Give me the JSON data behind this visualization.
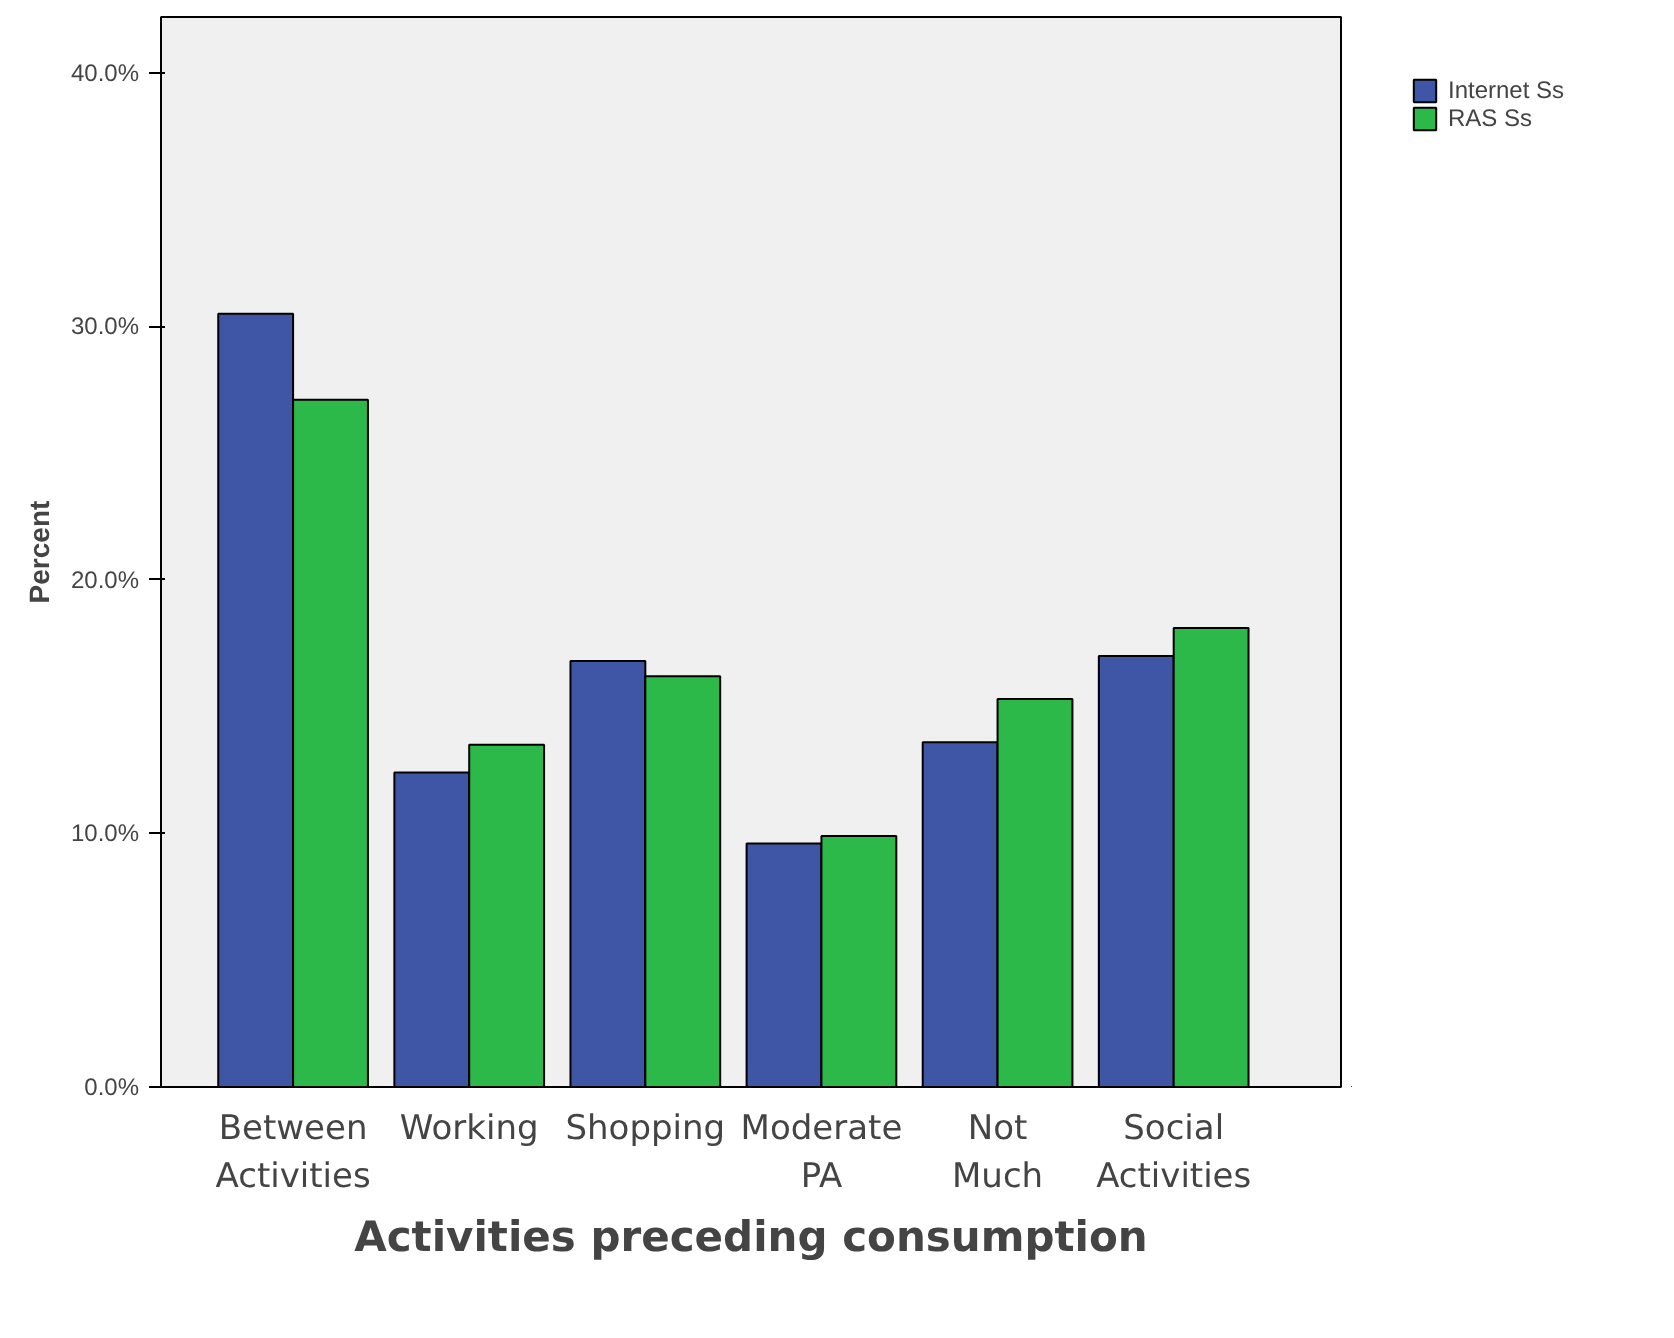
{
  "chart_data": {
    "type": "bar",
    "xlabel": "Activities preceding consumption",
    "ylabel": "Percent",
    "categories": [
      "Between Activities",
      "Working",
      "Shopping",
      "Moderate PA",
      "Not Much",
      "Social Activities"
    ],
    "series": [
      {
        "name": "Internet Ss",
        "color": "#3f56a6",
        "values": [
          30.5,
          12.4,
          16.8,
          9.6,
          13.6,
          17.0
        ]
      },
      {
        "name": "RAS Ss",
        "color": "#2db84a",
        "values": [
          27.1,
          13.5,
          16.2,
          9.9,
          15.3,
          18.1
        ]
      }
    ],
    "ylim": [
      0,
      42.2
    ],
    "yticks": [
      {
        "value": 0,
        "label": "0.0%"
      },
      {
        "value": 10,
        "label": "10.0%"
      },
      {
        "value": 20,
        "label": "20.0%"
      },
      {
        "value": 30,
        "label": "30.0%"
      },
      {
        "value": 40,
        "label": "40.0%"
      }
    ],
    "grid": false,
    "legend": "top right"
  }
}
